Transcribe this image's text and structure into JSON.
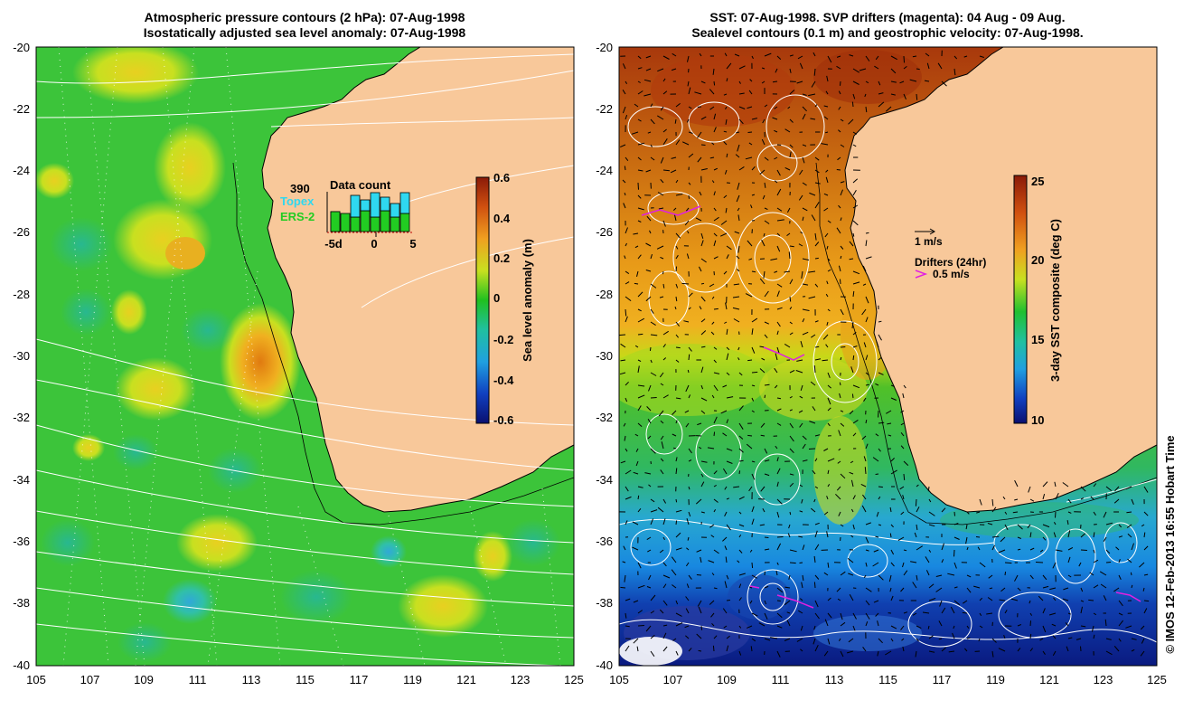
{
  "left_map": {
    "title_line1": "Atmospheric pressure contours (2 hPa): 07-Aug-1998",
    "title_line2": "Isostatically adjusted sea level anomaly: 07-Aug-1998",
    "y_ticks": [
      "-20",
      "-22",
      "-24",
      "-26",
      "-28",
      "-30",
      "-32",
      "-34",
      "-36",
      "-38",
      "-40"
    ],
    "x_ticks": [
      "105",
      "107",
      "109",
      "111",
      "113",
      "115",
      "117",
      "119",
      "121",
      "123",
      "125"
    ],
    "colorbar": {
      "label": "Sea level anomaly (m)",
      "ticks": [
        "0.6",
        "0.4",
        "0.2",
        "0",
        "-0.2",
        "-0.4",
        "-0.6"
      ]
    },
    "data_count": {
      "title": "Data count",
      "max_label": "390",
      "legend_topex": "Topex",
      "legend_ers2": "ERS-2",
      "x_labels": [
        "-5d",
        "0",
        "5"
      ],
      "topex_color": "#2fd8f0",
      "ers2_color": "#22cc22"
    }
  },
  "right_map": {
    "title_line1": "SST: 07-Aug-1998. SVP drifters (magenta): 04 Aug - 09 Aug.",
    "title_line2": "Sealevel contours (0.1 m) and geostrophic velocity: 07-Aug-1998.",
    "y_ticks": [
      "-20",
      "-22",
      "-24",
      "-26",
      "-28",
      "-30",
      "-32",
      "-34",
      "-36",
      "-38",
      "-40"
    ],
    "x_ticks": [
      "105",
      "107",
      "109",
      "111",
      "113",
      "115",
      "117",
      "119",
      "121",
      "123",
      "125"
    ],
    "colorbar": {
      "label": "3-day SST composite (deg C)",
      "ticks": [
        "25",
        "20",
        "15",
        "10"
      ]
    },
    "velocity_legend": "1 m/s",
    "drifters_legend_title": "Drifters (24hr)",
    "drifters_legend_speed": "0.5 m/s"
  },
  "credit": "© IMOS 12-Feb-2013 16:55 Hobart Time",
  "colors": {
    "land": "#f8c89a",
    "contour": "#ffffff",
    "coast": "#000000",
    "drifter": "#e020e0"
  }
}
